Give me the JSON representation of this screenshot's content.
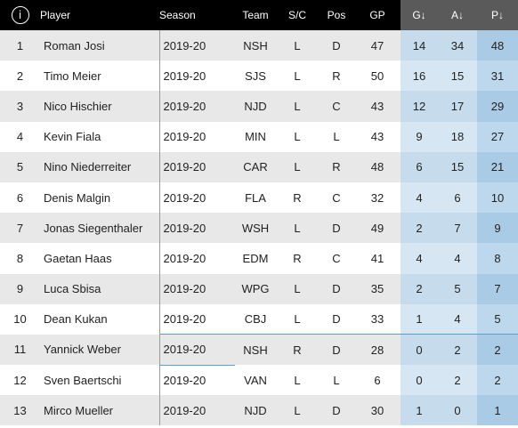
{
  "header": {
    "info_glyph": "i",
    "player": "Player",
    "season": "Season",
    "team": "Team",
    "sc": "S/C",
    "pos": "Pos",
    "gp": "GP",
    "g": "G↓",
    "a": "A↓",
    "p": "P↓"
  },
  "rows": [
    {
      "rank": "1",
      "player": "Roman Josi",
      "season": "2019-20",
      "team": "NSH",
      "sc": "L",
      "pos": "D",
      "gp": "47",
      "g": "14",
      "a": "34",
      "p": "48"
    },
    {
      "rank": "2",
      "player": "Timo Meier",
      "season": "2019-20",
      "team": "SJS",
      "sc": "L",
      "pos": "R",
      "gp": "50",
      "g": "16",
      "a": "15",
      "p": "31"
    },
    {
      "rank": "3",
      "player": "Nico Hischier",
      "season": "2019-20",
      "team": "NJD",
      "sc": "L",
      "pos": "C",
      "gp": "43",
      "g": "12",
      "a": "17",
      "p": "29"
    },
    {
      "rank": "4",
      "player": "Kevin Fiala",
      "season": "2019-20",
      "team": "MIN",
      "sc": "L",
      "pos": "L",
      "gp": "43",
      "g": "9",
      "a": "18",
      "p": "27"
    },
    {
      "rank": "5",
      "player": "Nino Niederreiter",
      "season": "2019-20",
      "team": "CAR",
      "sc": "L",
      "pos": "R",
      "gp": "48",
      "g": "6",
      "a": "15",
      "p": "21"
    },
    {
      "rank": "6",
      "player": "Denis Malgin",
      "season": "2019-20",
      "team": "FLA",
      "sc": "R",
      "pos": "C",
      "gp": "32",
      "g": "4",
      "a": "6",
      "p": "10"
    },
    {
      "rank": "7",
      "player": "Jonas Siegenthaler",
      "season": "2019-20",
      "team": "WSH",
      "sc": "L",
      "pos": "D",
      "gp": "49",
      "g": "2",
      "a": "7",
      "p": "9"
    },
    {
      "rank": "8",
      "player": "Gaetan Haas",
      "season": "2019-20",
      "team": "EDM",
      "sc": "R",
      "pos": "C",
      "gp": "41",
      "g": "4",
      "a": "4",
      "p": "8"
    },
    {
      "rank": "9",
      "player": "Luca Sbisa",
      "season": "2019-20",
      "team": "WPG",
      "sc": "L",
      "pos": "D",
      "gp": "35",
      "g": "2",
      "a": "5",
      "p": "7"
    },
    {
      "rank": "10",
      "player": "Dean Kukan",
      "season": "2019-20",
      "team": "CBJ",
      "sc": "L",
      "pos": "D",
      "gp": "33",
      "g": "1",
      "a": "4",
      "p": "5"
    },
    {
      "rank": "11",
      "player": "Yannick Weber",
      "season": "2019-20",
      "team": "NSH",
      "sc": "R",
      "pos": "D",
      "gp": "28",
      "g": "0",
      "a": "2",
      "p": "2"
    },
    {
      "rank": "12",
      "player": "Sven Baertschi",
      "season": "2019-20",
      "team": "VAN",
      "sc": "L",
      "pos": "L",
      "gp": "6",
      "g": "0",
      "a": "2",
      "p": "2"
    },
    {
      "rank": "13",
      "player": "Mirco Mueller",
      "season": "2019-20",
      "team": "NJD",
      "sc": "L",
      "pos": "D",
      "gp": "30",
      "g": "1",
      "a": "0",
      "p": "1"
    }
  ]
}
